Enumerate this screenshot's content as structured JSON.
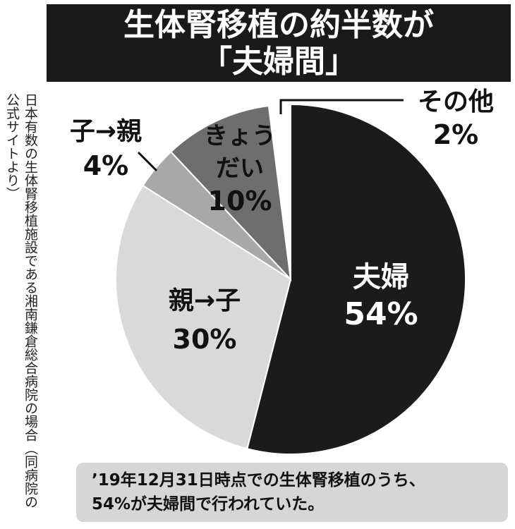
{
  "title": {
    "line1": "生体腎移植の約半数が",
    "line2": "「夫婦間」"
  },
  "source_note": "日本有数の生体腎移植施設である湘南鎌倉総合病院の場合（同病院の公式サイトより）",
  "caption": {
    "line1": "’19年12月31日時点での生体腎移植のうち、",
    "line2": "54%が夫婦間で行われていた。"
  },
  "chart_data": {
    "type": "pie",
    "slices": [
      {
        "label": "夫婦",
        "value": 54,
        "value_text": "54%",
        "color": "#1b1b1b",
        "text_color": "#ffffff"
      },
      {
        "label": "親→子",
        "value": 30,
        "value_text": "30%",
        "color": "#d9d9d9",
        "text_color": "#111111"
      },
      {
        "label": "子→親",
        "value": 4,
        "value_text": "4%",
        "color": "#a8a8a8",
        "text_color": "#111111"
      },
      {
        "label": "きょうだい",
        "value": 10,
        "value_text": "10%",
        "color": "#6e6e6e",
        "text_color": "#111111"
      },
      {
        "label": "その他",
        "value": 2,
        "value_text": "2%",
        "color": "#ffffff",
        "text_color": "#111111"
      }
    ]
  }
}
